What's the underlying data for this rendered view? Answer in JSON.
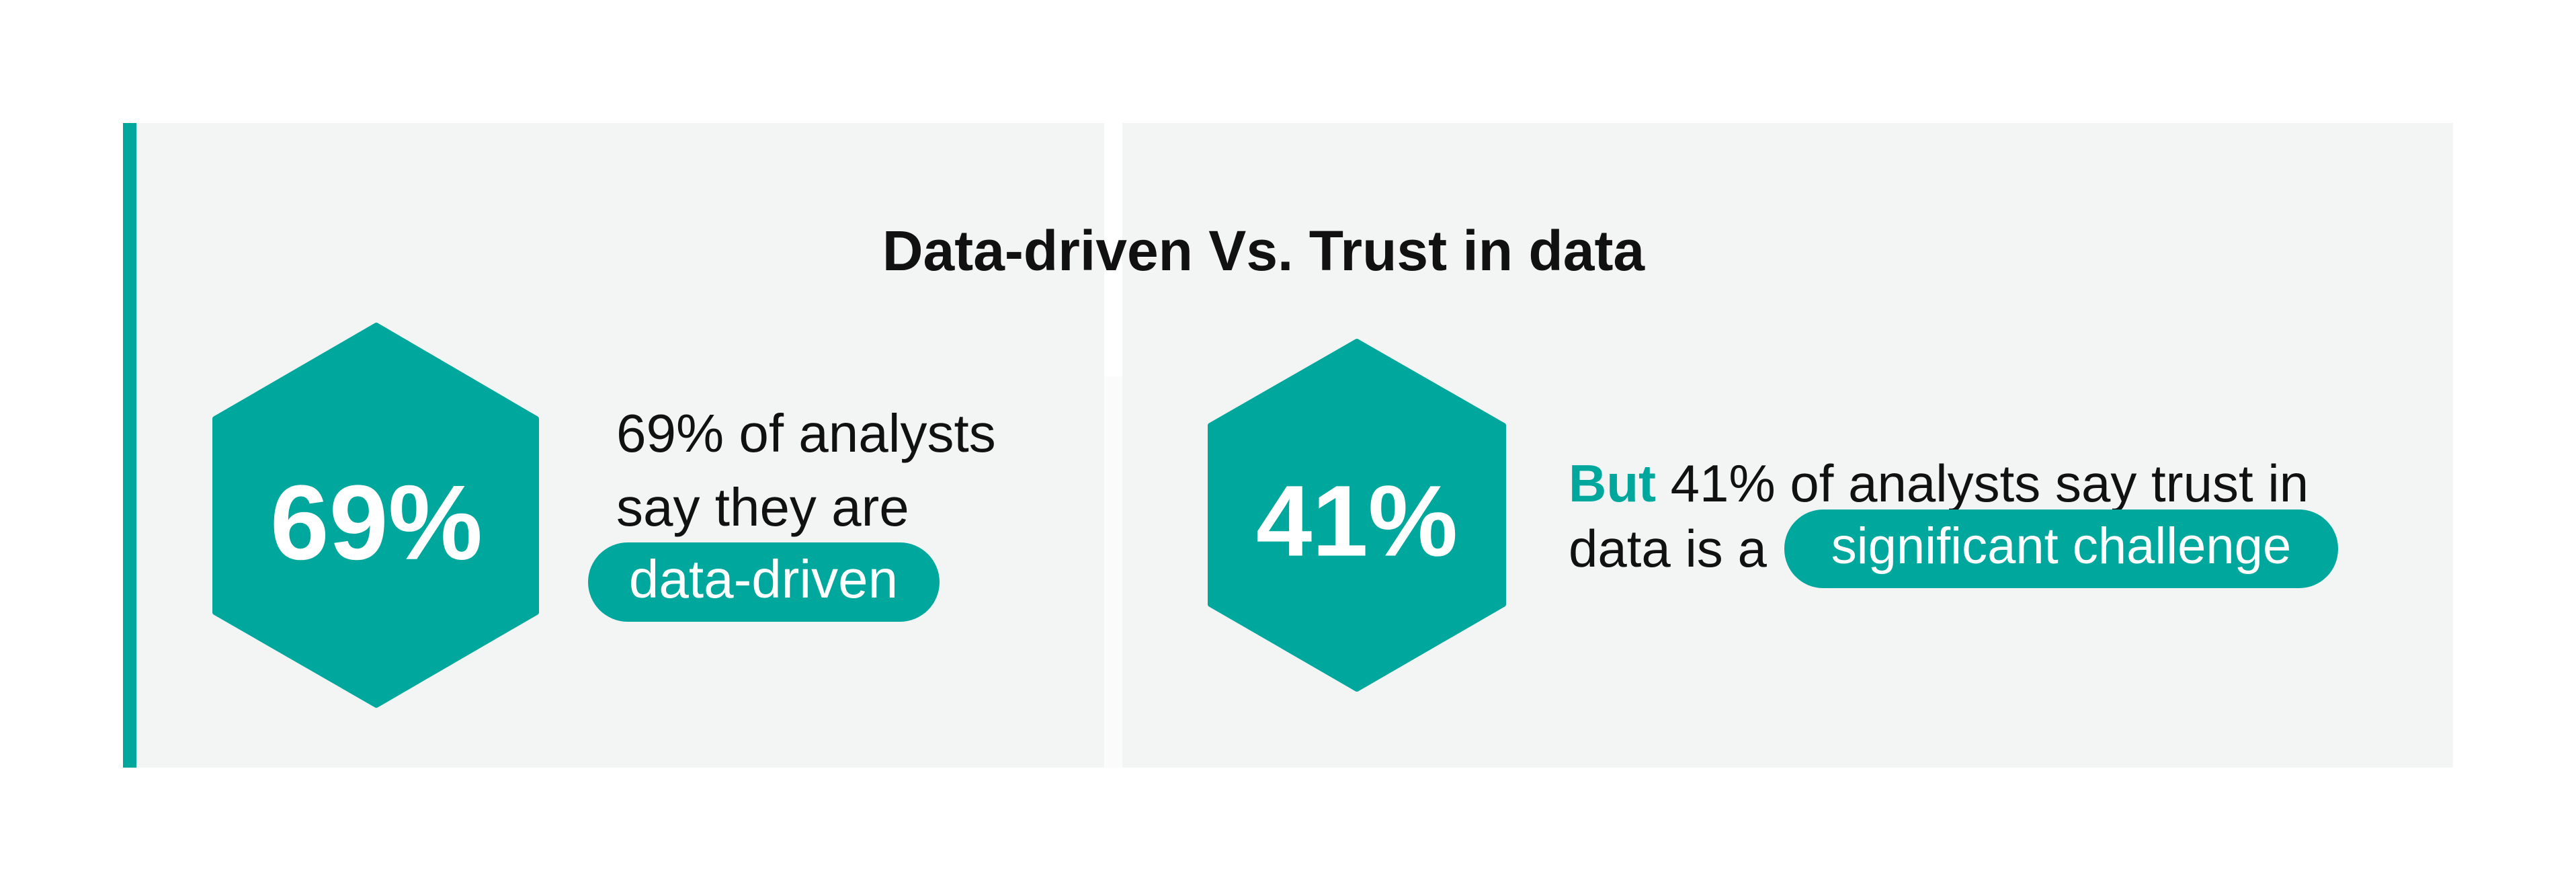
{
  "title": "Data-driven Vs. Trust in data",
  "cards": [
    {
      "stat": "69%",
      "lines": [
        "69% of analysts",
        "say they are"
      ],
      "highlight": "data-driven"
    },
    {
      "stat": "41%",
      "lead": "But",
      "lines": [
        "41% of analysts say trust in",
        "data is a"
      ],
      "highlight": "significant challenge"
    }
  ]
}
